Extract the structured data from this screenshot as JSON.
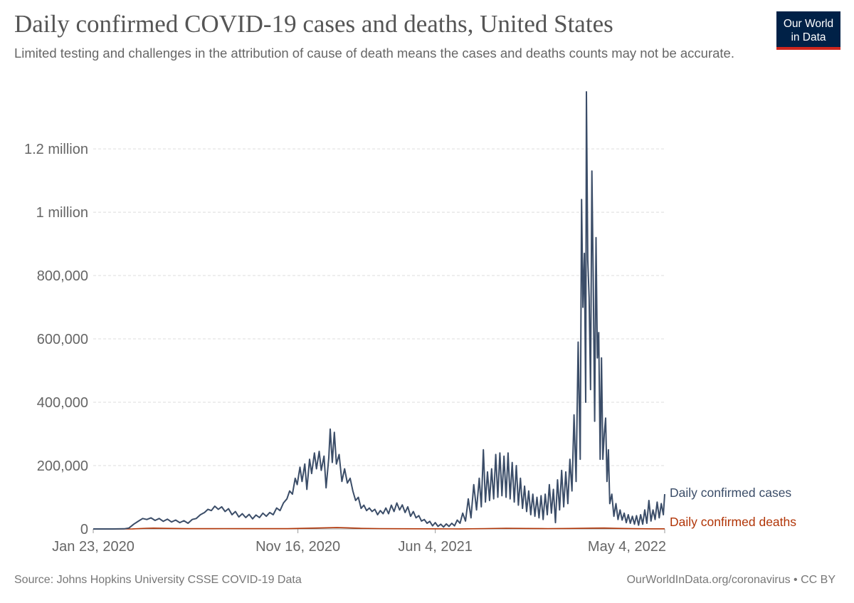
{
  "header": {
    "title": "Daily confirmed COVID-19 cases and deaths, United States",
    "subtitle": "Limited testing and challenges in the attribution of cause of death means the cases and deaths counts may not be accurate.",
    "logo_line1": "Our World",
    "logo_line2": "in Data"
  },
  "footer": {
    "source": "Source: Johns Hopkins University CSSE COVID-19 Data",
    "credit": "OurWorldInData.org/coronavirus • CC BY"
  },
  "colors": {
    "cases": "#3b4d68",
    "deaths": "#b13507",
    "grid": "#dddddd",
    "axis_text": "#666666",
    "logo_bg": "#002147",
    "logo_accent": "#ce261e"
  },
  "chart_data": {
    "type": "line",
    "x_type": "date",
    "xlim": [
      "2020-01-23",
      "2022-05-04"
    ],
    "ylim": [
      0,
      1380000
    ],
    "grid": "horizontal dashed",
    "legend": "inline right",
    "yticks": [
      {
        "value": 0,
        "label": "0"
      },
      {
        "value": 200000,
        "label": "200,000"
      },
      {
        "value": 400000,
        "label": "400,000"
      },
      {
        "value": 600000,
        "label": "600,000"
      },
      {
        "value": 800000,
        "label": "800,000"
      },
      {
        "value": 1000000,
        "label": "1 million"
      },
      {
        "value": 1200000,
        "label": "1.2 million"
      }
    ],
    "xticks": [
      {
        "value": "2020-01-23",
        "label": "Jan 23, 2020"
      },
      {
        "value": "2020-11-16",
        "label": "Nov 16, 2020"
      },
      {
        "value": "2021-06-04",
        "label": "Jun 4, 2021"
      },
      {
        "value": "2022-05-04",
        "label": "May 4, 2022"
      }
    ],
    "series": [
      {
        "name": "Daily confirmed cases",
        "color": "#3b4d68",
        "points": [
          [
            "2020-01-23",
            0
          ],
          [
            "2020-02-20",
            0
          ],
          [
            "2020-03-08",
            500
          ],
          [
            "2020-03-15",
            3000
          ],
          [
            "2020-03-22",
            15000
          ],
          [
            "2020-03-29",
            25000
          ],
          [
            "2020-04-04",
            33000
          ],
          [
            "2020-04-10",
            30000
          ],
          [
            "2020-04-16",
            35000
          ],
          [
            "2020-04-22",
            27000
          ],
          [
            "2020-04-28",
            33000
          ],
          [
            "2020-05-04",
            24000
          ],
          [
            "2020-05-10",
            31000
          ],
          [
            "2020-05-16",
            22000
          ],
          [
            "2020-05-22",
            28000
          ],
          [
            "2020-05-28",
            20000
          ],
          [
            "2020-06-03",
            26000
          ],
          [
            "2020-06-09",
            18000
          ],
          [
            "2020-06-15",
            30000
          ],
          [
            "2020-06-21",
            33000
          ],
          [
            "2020-06-27",
            45000
          ],
          [
            "2020-07-03",
            52000
          ],
          [
            "2020-07-08",
            62000
          ],
          [
            "2020-07-13",
            58000
          ],
          [
            "2020-07-18",
            72000
          ],
          [
            "2020-07-23",
            62000
          ],
          [
            "2020-07-28",
            70000
          ],
          [
            "2020-08-02",
            55000
          ],
          [
            "2020-08-07",
            64000
          ],
          [
            "2020-08-12",
            45000
          ],
          [
            "2020-08-17",
            55000
          ],
          [
            "2020-08-22",
            38000
          ],
          [
            "2020-08-27",
            48000
          ],
          [
            "2020-09-01",
            36000
          ],
          [
            "2020-09-06",
            46000
          ],
          [
            "2020-09-11",
            32000
          ],
          [
            "2020-09-16",
            44000
          ],
          [
            "2020-09-21",
            36000
          ],
          [
            "2020-09-26",
            50000
          ],
          [
            "2020-10-01",
            40000
          ],
          [
            "2020-10-06",
            52000
          ],
          [
            "2020-10-11",
            45000
          ],
          [
            "2020-10-16",
            66000
          ],
          [
            "2020-10-21",
            58000
          ],
          [
            "2020-10-26",
            82000
          ],
          [
            "2020-10-31",
            95000
          ],
          [
            "2020-11-04",
            120000
          ],
          [
            "2020-11-08",
            110000
          ],
          [
            "2020-11-12",
            160000
          ],
          [
            "2020-11-15",
            140000
          ],
          [
            "2020-11-19",
            195000
          ],
          [
            "2020-11-22",
            150000
          ],
          [
            "2020-11-26",
            205000
          ],
          [
            "2020-11-29",
            125000
          ],
          [
            "2020-12-03",
            220000
          ],
          [
            "2020-12-06",
            175000
          ],
          [
            "2020-12-10",
            240000
          ],
          [
            "2020-12-13",
            190000
          ],
          [
            "2020-12-17",
            245000
          ],
          [
            "2020-12-20",
            185000
          ],
          [
            "2020-12-24",
            230000
          ],
          [
            "2020-12-27",
            130000
          ],
          [
            "2020-12-31",
            225000
          ],
          [
            "2021-01-02",
            315000
          ],
          [
            "2021-01-05",
            210000
          ],
          [
            "2021-01-08",
            305000
          ],
          [
            "2021-01-11",
            205000
          ],
          [
            "2021-01-15",
            235000
          ],
          [
            "2021-01-19",
            150000
          ],
          [
            "2021-01-23",
            190000
          ],
          [
            "2021-01-27",
            145000
          ],
          [
            "2021-01-31",
            160000
          ],
          [
            "2021-02-04",
            120000
          ],
          [
            "2021-02-08",
            90000
          ],
          [
            "2021-02-12",
            100000
          ],
          [
            "2021-02-16",
            65000
          ],
          [
            "2021-02-20",
            75000
          ],
          [
            "2021-02-24",
            58000
          ],
          [
            "2021-02-28",
            66000
          ],
          [
            "2021-03-04",
            55000
          ],
          [
            "2021-03-08",
            62000
          ],
          [
            "2021-03-12",
            45000
          ],
          [
            "2021-03-16",
            58000
          ],
          [
            "2021-03-20",
            48000
          ],
          [
            "2021-03-24",
            66000
          ],
          [
            "2021-03-28",
            48000
          ],
          [
            "2021-04-01",
            75000
          ],
          [
            "2021-04-05",
            55000
          ],
          [
            "2021-04-09",
            82000
          ],
          [
            "2021-04-13",
            60000
          ],
          [
            "2021-04-17",
            76000
          ],
          [
            "2021-04-21",
            52000
          ],
          [
            "2021-04-25",
            70000
          ],
          [
            "2021-04-29",
            40000
          ],
          [
            "2021-05-03",
            55000
          ],
          [
            "2021-05-07",
            35000
          ],
          [
            "2021-05-11",
            42000
          ],
          [
            "2021-05-15",
            25000
          ],
          [
            "2021-05-19",
            30000
          ],
          [
            "2021-05-23",
            18000
          ],
          [
            "2021-05-27",
            24000
          ],
          [
            "2021-05-31",
            10000
          ],
          [
            "2021-06-04",
            20000
          ],
          [
            "2021-06-08",
            8000
          ],
          [
            "2021-06-12",
            15000
          ],
          [
            "2021-06-16",
            6000
          ],
          [
            "2021-06-20",
            16000
          ],
          [
            "2021-06-24",
            8000
          ],
          [
            "2021-06-28",
            18000
          ],
          [
            "2021-07-02",
            10000
          ],
          [
            "2021-07-06",
            28000
          ],
          [
            "2021-07-10",
            18000
          ],
          [
            "2021-07-14",
            50000
          ],
          [
            "2021-07-18",
            25000
          ],
          [
            "2021-07-22",
            95000
          ],
          [
            "2021-07-26",
            35000
          ],
          [
            "2021-07-30",
            140000
          ],
          [
            "2021-08-03",
            60000
          ],
          [
            "2021-08-07",
            160000
          ],
          [
            "2021-08-10",
            70000
          ],
          [
            "2021-08-13",
            250000
          ],
          [
            "2021-08-16",
            85000
          ],
          [
            "2021-08-19",
            180000
          ],
          [
            "2021-08-22",
            90000
          ],
          [
            "2021-08-25",
            190000
          ],
          [
            "2021-08-28",
            95000
          ],
          [
            "2021-08-31",
            235000
          ],
          [
            "2021-09-03",
            100000
          ],
          [
            "2021-09-06",
            240000
          ],
          [
            "2021-09-09",
            105000
          ],
          [
            "2021-09-12",
            230000
          ],
          [
            "2021-09-15",
            100000
          ],
          [
            "2021-09-18",
            240000
          ],
          [
            "2021-09-21",
            95000
          ],
          [
            "2021-09-24",
            210000
          ],
          [
            "2021-09-27",
            85000
          ],
          [
            "2021-09-30",
            200000
          ],
          [
            "2021-10-03",
            75000
          ],
          [
            "2021-10-06",
            160000
          ],
          [
            "2021-10-09",
            65000
          ],
          [
            "2021-10-12",
            135000
          ],
          [
            "2021-10-15",
            55000
          ],
          [
            "2021-10-18",
            120000
          ],
          [
            "2021-10-21",
            45000
          ],
          [
            "2021-10-24",
            110000
          ],
          [
            "2021-10-27",
            40000
          ],
          [
            "2021-10-30",
            100000
          ],
          [
            "2021-11-02",
            35000
          ],
          [
            "2021-11-05",
            105000
          ],
          [
            "2021-11-08",
            30000
          ],
          [
            "2021-11-11",
            110000
          ],
          [
            "2021-11-14",
            45000
          ],
          [
            "2021-11-17",
            140000
          ],
          [
            "2021-11-20",
            50000
          ],
          [
            "2021-11-23",
            125000
          ],
          [
            "2021-11-26",
            20000
          ],
          [
            "2021-11-29",
            155000
          ],
          [
            "2021-12-02",
            60000
          ],
          [
            "2021-12-05",
            185000
          ],
          [
            "2021-12-08",
            70000
          ],
          [
            "2021-12-11",
            180000
          ],
          [
            "2021-12-14",
            80000
          ],
          [
            "2021-12-17",
            220000
          ],
          [
            "2021-12-20",
            120000
          ],
          [
            "2021-12-23",
            360000
          ],
          [
            "2021-12-26",
            150000
          ],
          [
            "2021-12-29",
            590000
          ],
          [
            "2022-01-01",
            220000
          ],
          [
            "2022-01-03",
            1040000
          ],
          [
            "2022-01-05",
            700000
          ],
          [
            "2022-01-07",
            870000
          ],
          [
            "2022-01-09",
            400000
          ],
          [
            "2022-01-10",
            1380000
          ],
          [
            "2022-01-12",
            850000
          ],
          [
            "2022-01-14",
            730000
          ],
          [
            "2022-01-16",
            440000
          ],
          [
            "2022-01-18",
            1130000
          ],
          [
            "2022-01-20",
            780000
          ],
          [
            "2022-01-22",
            340000
          ],
          [
            "2022-01-24",
            920000
          ],
          [
            "2022-01-26",
            540000
          ],
          [
            "2022-01-28",
            620000
          ],
          [
            "2022-01-30",
            220000
          ],
          [
            "2022-02-01",
            540000
          ],
          [
            "2022-02-03",
            220000
          ],
          [
            "2022-02-05",
            300000
          ],
          [
            "2022-02-07",
            350000
          ],
          [
            "2022-02-09",
            150000
          ],
          [
            "2022-02-11",
            250000
          ],
          [
            "2022-02-13",
            80000
          ],
          [
            "2022-02-16",
            110000
          ],
          [
            "2022-02-19",
            40000
          ],
          [
            "2022-02-22",
            80000
          ],
          [
            "2022-02-25",
            30000
          ],
          [
            "2022-02-28",
            60000
          ],
          [
            "2022-03-03",
            28000
          ],
          [
            "2022-03-06",
            50000
          ],
          [
            "2022-03-09",
            20000
          ],
          [
            "2022-03-12",
            45000
          ],
          [
            "2022-03-15",
            18000
          ],
          [
            "2022-03-18",
            40000
          ],
          [
            "2022-03-21",
            15000
          ],
          [
            "2022-03-24",
            42000
          ],
          [
            "2022-03-27",
            12000
          ],
          [
            "2022-03-30",
            45000
          ],
          [
            "2022-04-02",
            15000
          ],
          [
            "2022-04-05",
            60000
          ],
          [
            "2022-04-08",
            18000
          ],
          [
            "2022-04-11",
            90000
          ],
          [
            "2022-04-14",
            25000
          ],
          [
            "2022-04-17",
            60000
          ],
          [
            "2022-04-20",
            30000
          ],
          [
            "2022-04-23",
            85000
          ],
          [
            "2022-04-26",
            35000
          ],
          [
            "2022-04-29",
            80000
          ],
          [
            "2022-05-02",
            45000
          ],
          [
            "2022-05-04",
            110000
          ]
        ]
      },
      {
        "name": "Daily confirmed deaths",
        "color": "#b13507",
        "points": [
          [
            "2020-01-23",
            0
          ],
          [
            "2020-03-01",
            0
          ],
          [
            "2020-03-20",
            200
          ],
          [
            "2020-04-10",
            2200
          ],
          [
            "2020-04-20",
            2600
          ],
          [
            "2020-05-10",
            1800
          ],
          [
            "2020-06-10",
            800
          ],
          [
            "2020-07-15",
            900
          ],
          [
            "2020-08-01",
            1200
          ],
          [
            "2020-09-01",
            900
          ],
          [
            "2020-10-01",
            800
          ],
          [
            "2020-11-01",
            900
          ],
          [
            "2020-12-01",
            2400
          ],
          [
            "2021-01-12",
            4200
          ],
          [
            "2021-01-27",
            3500
          ],
          [
            "2021-02-15",
            2000
          ],
          [
            "2021-03-15",
            1200
          ],
          [
            "2021-04-15",
            700
          ],
          [
            "2021-06-04",
            400
          ],
          [
            "2021-07-10",
            300
          ],
          [
            "2021-08-15",
            1200
          ],
          [
            "2021-09-15",
            2200
          ],
          [
            "2021-10-15",
            1600
          ],
          [
            "2021-11-15",
            1200
          ],
          [
            "2021-12-15",
            1500
          ],
          [
            "2022-01-20",
            2800
          ],
          [
            "2022-02-05",
            3000
          ],
          [
            "2022-02-25",
            1800
          ],
          [
            "2022-03-20",
            900
          ],
          [
            "2022-04-15",
            500
          ],
          [
            "2022-05-04",
            400
          ]
        ]
      }
    ]
  }
}
